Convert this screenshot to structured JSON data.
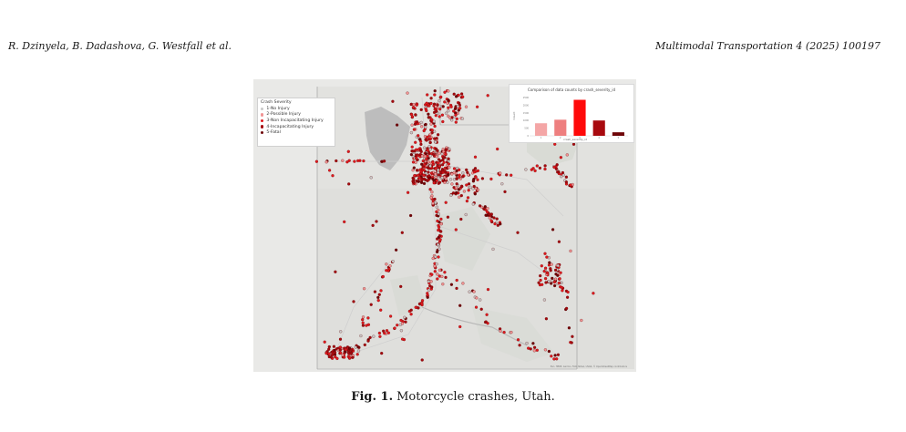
{
  "header": {
    "authors": "R. Dzinyela, B. Dadashova, G. Westfall et al.",
    "journal": "Multimodal Transportation 4 (2025) 100197"
  },
  "figure": {
    "legend": {
      "title": "Crash Severity",
      "items": [
        {
          "label": "1-No Injury",
          "color": "#c9c9c9"
        },
        {
          "label": "2-Possible Injury",
          "color": "#f09494"
        },
        {
          "label": "3-Non Incapacitating Injury",
          "color": "#e0191e"
        },
        {
          "label": "4-Incapacitating Injury",
          "color": "#a40a0f"
        },
        {
          "label": "5-Fatal",
          "color": "#6e0508"
        }
      ]
    },
    "attribution": "Esri, HERE, Garmin, FAO, NOAA, USGS, © OpenStreetMap contributors"
  },
  "chart_data": {
    "type": "bar",
    "title": "Comparison of data counts by crash_severity_id",
    "xlabel": "crash_severity_id",
    "ylabel": "Count",
    "categories": [
      "1",
      "2",
      "3",
      "4",
      "5"
    ],
    "values": [
      820,
      1050,
      2350,
      1000,
      230
    ],
    "colors": [
      "#f4a6a6",
      "#ee7f7f",
      "#ff0a0a",
      "#a80a0f",
      "#6e0508"
    ],
    "yticks": [
      "0",
      "500",
      "1000",
      "1500",
      "2000",
      "2500"
    ],
    "ylim": [
      0,
      2500
    ]
  },
  "caption": {
    "label": "Fig. 1.",
    "text": "Motorcycle crashes, Utah."
  }
}
